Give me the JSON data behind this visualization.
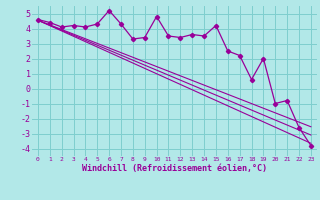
{
  "xlabel": "Windchill (Refroidissement éolien,°C)",
  "bg_color": "#b2e8e8",
  "line_color": "#990099",
  "grid_color": "#7ecece",
  "xlim": [
    -0.5,
    23.5
  ],
  "ylim": [
    -4.5,
    5.5
  ],
  "yticks": [
    -4,
    -3,
    -2,
    -1,
    0,
    1,
    2,
    3,
    4,
    5
  ],
  "xticks": [
    0,
    1,
    2,
    3,
    4,
    5,
    6,
    7,
    8,
    9,
    10,
    11,
    12,
    13,
    14,
    15,
    16,
    17,
    18,
    19,
    20,
    21,
    22,
    23
  ],
  "data_x": [
    0,
    1,
    2,
    3,
    4,
    5,
    6,
    7,
    8,
    9,
    10,
    11,
    12,
    13,
    14,
    15,
    16,
    17,
    18,
    19,
    20,
    21,
    22,
    23
  ],
  "data_y": [
    4.6,
    4.4,
    4.1,
    4.2,
    4.1,
    4.3,
    5.2,
    4.3,
    3.3,
    3.4,
    4.8,
    3.5,
    3.4,
    3.6,
    3.5,
    4.2,
    2.5,
    2.2,
    0.6,
    2.0,
    -1.0,
    -0.8,
    -2.6,
    -3.8
  ],
  "trend1_x": [
    0,
    23
  ],
  "trend1_y": [
    4.55,
    -3.65
  ],
  "trend2_x": [
    0,
    23
  ],
  "trend2_y": [
    4.55,
    -2.55
  ],
  "trend3_x": [
    0,
    23
  ],
  "trend3_y": [
    4.55,
    -3.1
  ]
}
